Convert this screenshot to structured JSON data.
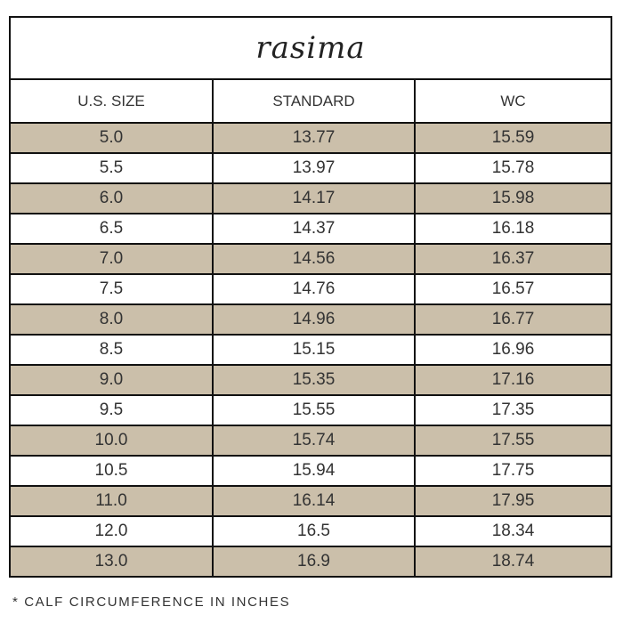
{
  "brand": "rasima",
  "colors": {
    "shaded_row": "#cbbfaa",
    "border": "#111111"
  },
  "headers": [
    "U.S. SIZE",
    "STANDARD",
    "WC"
  ],
  "rows": [
    [
      "5.0",
      "13.77",
      "15.59"
    ],
    [
      "5.5",
      "13.97",
      "15.78"
    ],
    [
      "6.0",
      "14.17",
      "15.98"
    ],
    [
      "6.5",
      "14.37",
      "16.18"
    ],
    [
      "7.0",
      "14.56",
      "16.37"
    ],
    [
      "7.5",
      "14.76",
      "16.57"
    ],
    [
      "8.0",
      "14.96",
      "16.77"
    ],
    [
      "8.5",
      "15.15",
      "16.96"
    ],
    [
      "9.0",
      "15.35",
      "17.16"
    ],
    [
      "9.5",
      "15.55",
      "17.35"
    ],
    [
      "10.0",
      "15.74",
      "17.55"
    ],
    [
      "10.5",
      "15.94",
      "17.75"
    ],
    [
      "11.0",
      "16.14",
      "17.95"
    ],
    [
      "12.0",
      "16.5",
      "18.34"
    ],
    [
      "13.0",
      "16.9",
      "18.74"
    ]
  ],
  "footnote": "* CALF CIRCUMFERENCE IN INCHES"
}
